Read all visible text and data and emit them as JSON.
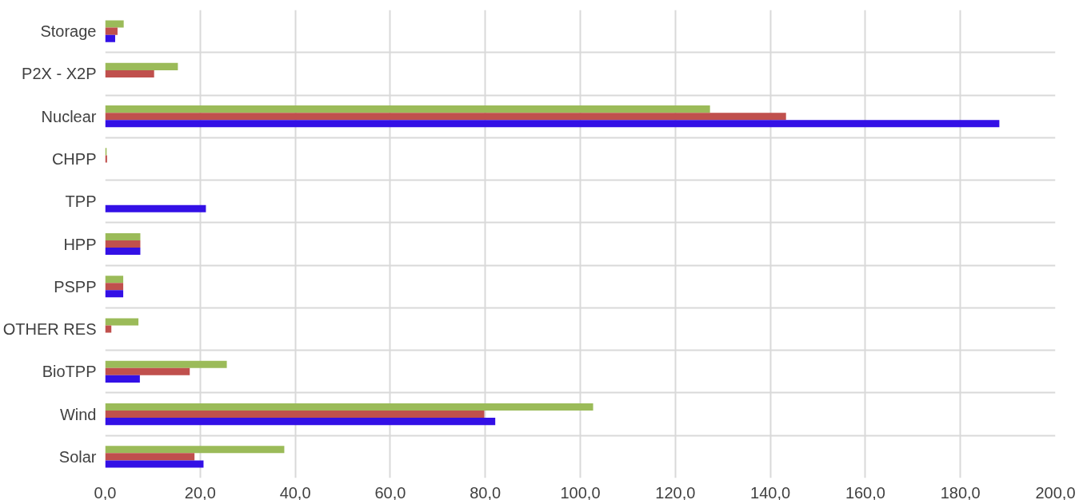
{
  "chart_data": {
    "type": "bar",
    "orientation": "horizontal",
    "categories": [
      "Storage",
      "P2X - X2P",
      "Nuclear",
      "CHPP",
      "TPP",
      "HPP",
      "PSPP",
      "OTHER RES",
      "BioTPP",
      "Wind",
      "Solar"
    ],
    "series": [
      {
        "color": "#9bbb59",
        "values": [
          3.9,
          15.3,
          127.3,
          0.3,
          null,
          7.4,
          3.8,
          7.0,
          25.6,
          102.7,
          37.7
        ]
      },
      {
        "color": "#c0504d",
        "values": [
          2.6,
          10.3,
          143.3,
          0.4,
          null,
          7.4,
          3.8,
          1.3,
          17.8,
          79.8,
          18.8
        ]
      },
      {
        "color": "#3310e6",
        "values": [
          2.1,
          null,
          188.2,
          null,
          21.2,
          7.4,
          3.8,
          null,
          7.3,
          82.1,
          20.7
        ]
      }
    ],
    "xlim": [
      0,
      200
    ],
    "xticks": [
      {
        "value": 0,
        "label": "0,0"
      },
      {
        "value": 20,
        "label": "20,0"
      },
      {
        "value": 40,
        "label": "40,0"
      },
      {
        "value": 60,
        "label": "60,0"
      },
      {
        "value": 80,
        "label": "80,0"
      },
      {
        "value": 100,
        "label": "100,0"
      },
      {
        "value": 120,
        "label": "120,0"
      },
      {
        "value": 140,
        "label": "140,0"
      },
      {
        "value": 160,
        "label": "160,0"
      },
      {
        "value": 180,
        "label": "180,0"
      },
      {
        "value": 200,
        "label": "200,0"
      }
    ],
    "grid": true
  }
}
